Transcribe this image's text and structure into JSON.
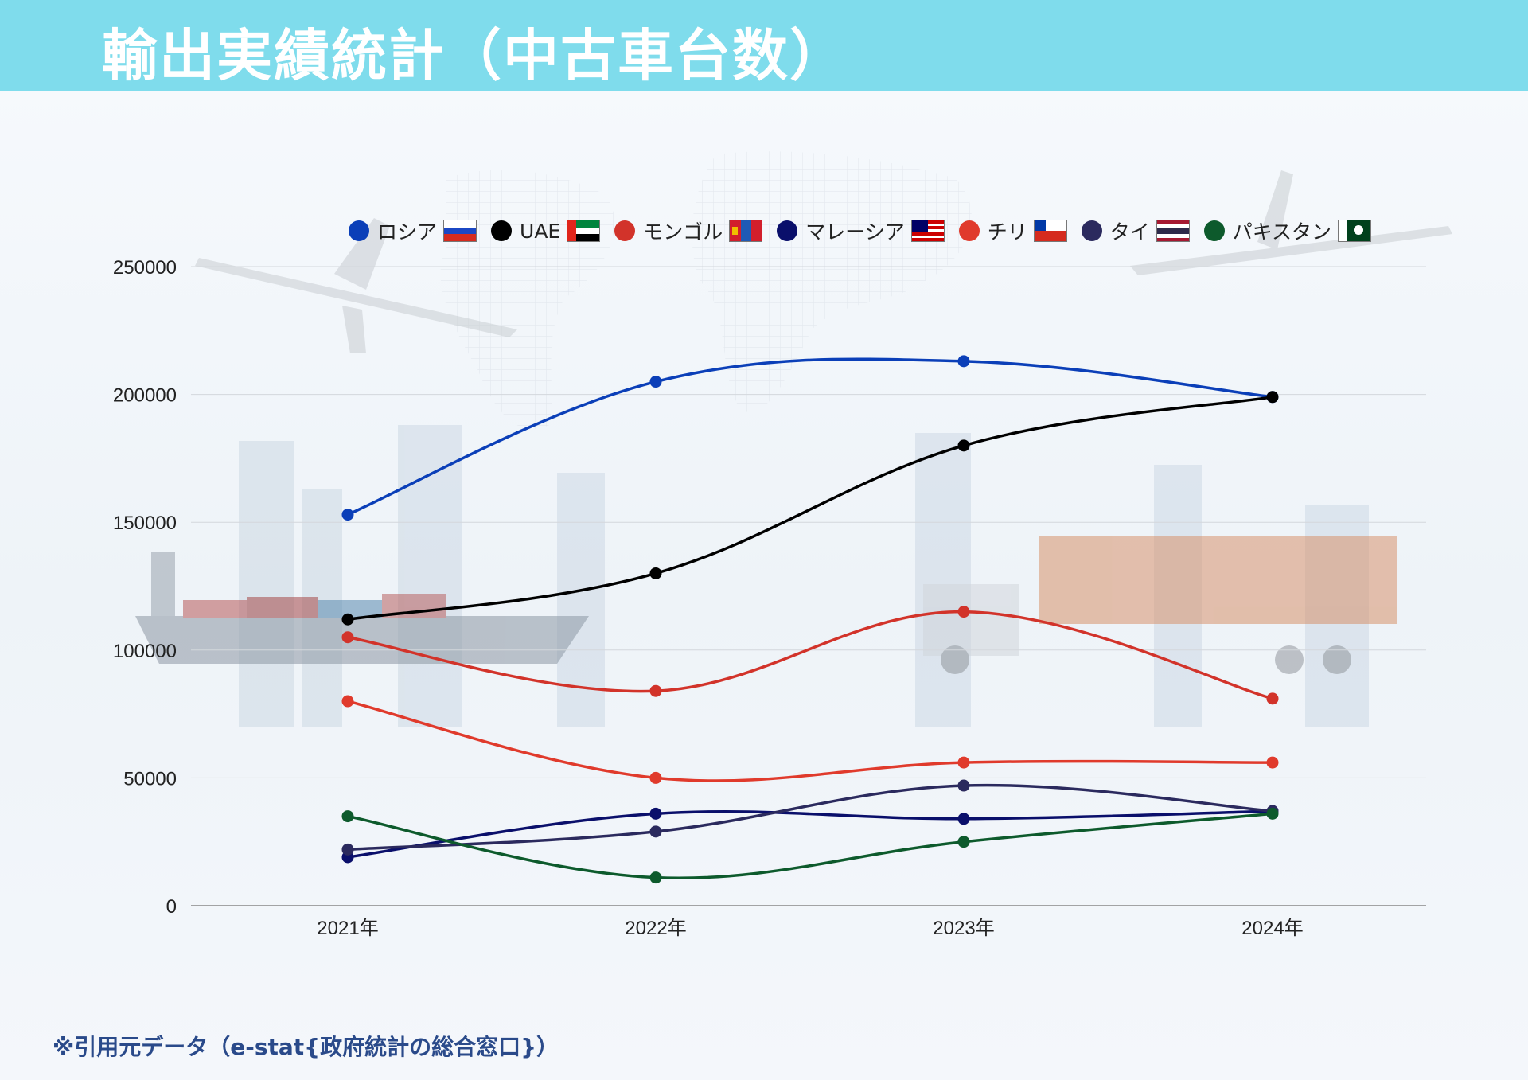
{
  "header": {
    "title": "輸出実績統計（中古車台数）"
  },
  "footer": {
    "source_note": "※引用元データ（e-stat{政府統計の総合窓口}）"
  },
  "colors": {
    "header_bg": "#7fdcec",
    "title_text": "#ffffff",
    "footer_text": "#2a4a8a"
  },
  "chart_data": {
    "type": "line",
    "categories": [
      "2021年",
      "2022年",
      "2023年",
      "2024年"
    ],
    "ylim": [
      0,
      250000
    ],
    "yticks": [
      0,
      50000,
      100000,
      150000,
      200000,
      250000
    ],
    "grid": true,
    "legend_position": "top",
    "series": [
      {
        "name": "ロシア",
        "color": "#0b3fb8",
        "flag": "russia",
        "values": [
          153000,
          205000,
          213000,
          199000
        ]
      },
      {
        "name": "UAE",
        "color": "#000000",
        "flag": "uae",
        "values": [
          112000,
          130000,
          180000,
          199000
        ]
      },
      {
        "name": "モンゴル",
        "color": "#d2332a",
        "flag": "mongolia",
        "values": [
          105000,
          84000,
          115000,
          81000
        ]
      },
      {
        "name": "マレーシア",
        "color": "#0a0f6b",
        "flag": "malaysia",
        "values": [
          19000,
          36000,
          34000,
          37000
        ]
      },
      {
        "name": "チリ",
        "color": "#e03a2c",
        "flag": "chile",
        "values": [
          80000,
          50000,
          56000,
          56000
        ]
      },
      {
        "name": "タイ",
        "color": "#2b2a5e",
        "flag": "thailand",
        "values": [
          22000,
          29000,
          47000,
          37000
        ]
      },
      {
        "name": "パキスタン",
        "color": "#0d5a2c",
        "flag": "pakistan",
        "values": [
          35000,
          11000,
          25000,
          36000
        ]
      }
    ]
  }
}
